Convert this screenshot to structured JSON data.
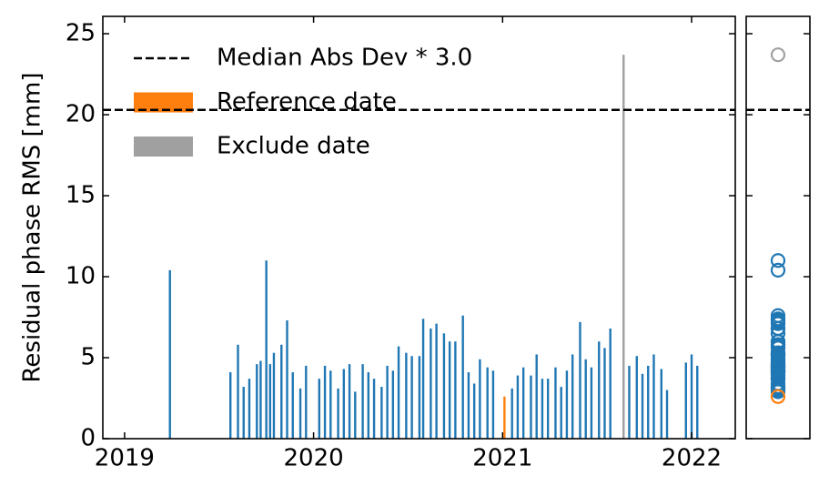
{
  "chart_data": {
    "type": "bar",
    "ylabel": "Residual phase RMS [mm]",
    "xlim": [
      2018.885,
      2022.231
    ],
    "xticks": [
      2019,
      2020,
      2021,
      2022
    ],
    "ylim": [
      0,
      26.07
    ],
    "yticks": [
      0,
      5,
      10,
      15,
      20,
      25
    ],
    "legend": "upper left",
    "threshold": {
      "name": "Median Abs Dev * 3.0",
      "value": 20.3,
      "color": "#000000"
    },
    "series": [
      {
        "color": "#1f77b4",
        "x": [
          2019.24,
          2019.56,
          2019.6,
          2019.63,
          2019.66,
          2019.7,
          2019.72,
          2019.75,
          2019.77,
          2019.79,
          2019.83,
          2019.86,
          2019.89,
          2019.93,
          2019.96,
          2020.03,
          2020.06,
          2020.09,
          2020.13,
          2020.16,
          2020.19,
          2020.22,
          2020.26,
          2020.29,
          2020.32,
          2020.36,
          2020.39,
          2020.42,
          2020.45,
          2020.49,
          2020.52,
          2020.56,
          2020.58,
          2020.62,
          2020.65,
          2020.69,
          2020.72,
          2020.75,
          2020.79,
          2020.82,
          2020.85,
          2020.88,
          2020.92,
          2020.95,
          2021.05,
          2021.08,
          2021.11,
          2021.15,
          2021.18,
          2021.21,
          2021.24,
          2021.28,
          2021.31,
          2021.34,
          2021.37,
          2021.41,
          2021.44,
          2021.47,
          2021.51,
          2021.54,
          2021.57,
          2021.67,
          2021.71,
          2021.74,
          2021.77,
          2021.8,
          2021.84,
          2021.87,
          2021.97,
          2022.0,
          2022.03
        ],
        "values": [
          10.4,
          4.1,
          5.8,
          3.2,
          3.7,
          4.6,
          4.8,
          11.0,
          4.6,
          5.3,
          5.8,
          7.3,
          4.1,
          3.1,
          4.5,
          3.7,
          4.5,
          4.2,
          3.1,
          4.3,
          4.6,
          2.9,
          4.6,
          4.1,
          3.7,
          3.2,
          4.5,
          4.2,
          5.7,
          5.3,
          5.1,
          5.1,
          7.4,
          6.8,
          7.1,
          6.5,
          6.0,
          6.0,
          7.6,
          4.1,
          3.4,
          4.9,
          4.4,
          4.2,
          3.1,
          3.9,
          4.4,
          3.9,
          5.2,
          3.7,
          3.7,
          4.4,
          3.2,
          4.2,
          5.2,
          7.2,
          4.9,
          4.4,
          6.0,
          5.6,
          6.8,
          4.5,
          5.1,
          4.0,
          4.5,
          5.2,
          4.3,
          3.0,
          4.7,
          5.2,
          4.5
        ]
      },
      {
        "name": "Reference date",
        "color": "#ff7f0e",
        "x": [
          2021.01
        ],
        "values": [
          2.6
        ]
      },
      {
        "name": "Exclude date",
        "color": "#a0a0a0",
        "x": [
          2021.64
        ],
        "values": [
          23.7
        ]
      }
    ]
  }
}
